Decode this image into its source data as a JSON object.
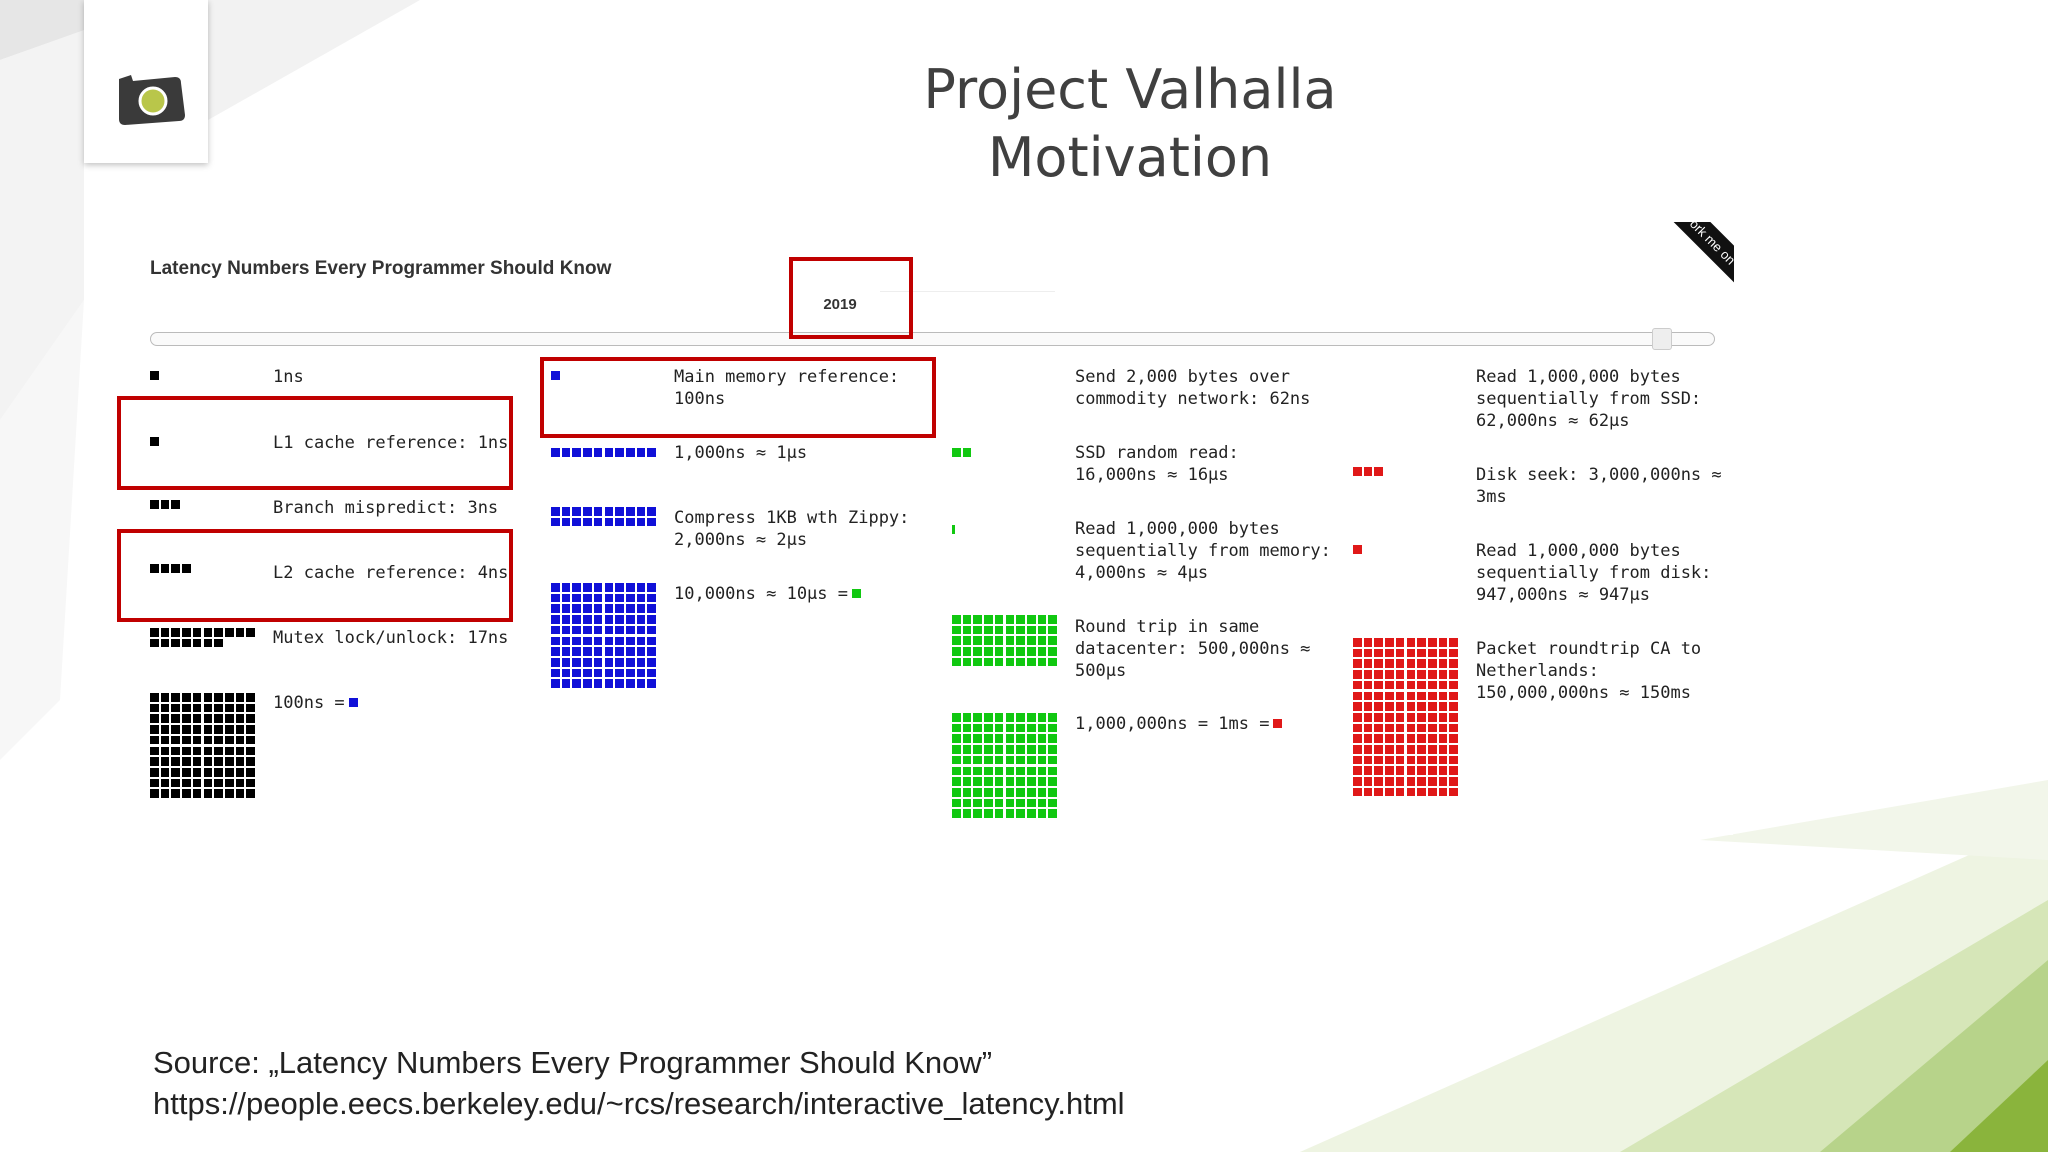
{
  "slide": {
    "title_line1": "Project Valhalla",
    "title_line2": "Motivation",
    "source_line1": "Source: „Latency Numbers Every Programmer Should Know”",
    "source_line2": "https://people.eecs.berkeley.edu/~rcs/research/interactive_latency.html",
    "logo_icon": "camera-icon",
    "accent_green": "#8ab43c",
    "highlight_red": "#c00000"
  },
  "panel": {
    "title": "Latency Numbers Every Programmer Should Know",
    "year": "2019",
    "year_slider_level": 0.965,
    "ribbon_text": "Fork me on GitHub"
  },
  "colors": {
    "black": "#000000",
    "blue": "#1010d8",
    "green": "#11c811",
    "red": "#e01818"
  },
  "items": [
    {
      "id": "unit-1ns",
      "text": "1ns",
      "squares": 1,
      "color": "black",
      "highlighted": false
    },
    {
      "id": "l1-cache",
      "text": "L1 cache reference: 1ns",
      "squares": 1,
      "color": "black",
      "highlighted": true
    },
    {
      "id": "branch-mispredict",
      "text": "Branch mispredict: 3ns",
      "squares": 3,
      "color": "black",
      "highlighted": false
    },
    {
      "id": "l2-cache",
      "text": "L2 cache reference: 4ns",
      "squares": 4,
      "color": "black",
      "highlighted": true
    },
    {
      "id": "mutex",
      "text": "Mutex lock/unlock: 17ns",
      "squares": 17,
      "color": "black",
      "highlighted": false
    },
    {
      "id": "unit-100ns",
      "text": "100ns =",
      "squares": 100,
      "color": "black",
      "equals_color": "blue",
      "highlighted": false
    },
    {
      "id": "main-memory",
      "line1": "Main memory reference:",
      "line2": "100ns",
      "squares": 1,
      "color": "blue",
      "highlighted": true
    },
    {
      "id": "unit-1us",
      "text": "1,000ns ≈ 1μs",
      "squares": 10,
      "color": "blue",
      "highlighted": false
    },
    {
      "id": "zippy",
      "line1": "Compress 1KB wth Zippy:",
      "line2": "2,000ns ≈ 2μs",
      "squares": 20,
      "color": "blue",
      "highlighted": false
    },
    {
      "id": "unit-10us",
      "text": "10,000ns ≈ 10μs =",
      "squares": 100,
      "color": "blue",
      "equals_color": "green",
      "highlighted": false
    },
    {
      "id": "network",
      "line1": "Send 2,000 bytes over",
      "line2": "commodity network: 62ns",
      "squares": 0,
      "color": "green",
      "highlighted": false
    },
    {
      "id": "ssd-random",
      "line1": "SSD random read:",
      "line2": "16,000ns ≈ 16μs",
      "squares": 2,
      "color": "green",
      "highlighted": false
    },
    {
      "id": "read-memory",
      "line1": "Read 1,000,000 bytes",
      "line2": "sequentially from memory:",
      "line3": "4,000ns ≈ 4μs",
      "squares": 0.4,
      "color": "green",
      "highlighted": false
    },
    {
      "id": "datacenter",
      "line1": "Round trip in same",
      "line2": "datacenter: 500,000ns ≈",
      "line3": "500μs",
      "squares": 50,
      "color": "green",
      "highlighted": false
    },
    {
      "id": "unit-1ms",
      "text": "1,000,000ns = 1ms =",
      "squares": 100,
      "color": "green",
      "equals_color": "red",
      "highlighted": false
    },
    {
      "id": "read-ssd",
      "line1": "Read 1,000,000 bytes",
      "line2": "sequentially from SSD:",
      "line3": "62,000ns ≈ 62μs",
      "squares": 0,
      "color": "red",
      "highlighted": false
    },
    {
      "id": "disk-seek",
      "line1": "Disk seek: 3,000,000ns ≈",
      "line2": "3ms",
      "squares": 3,
      "color": "red",
      "highlighted": false
    },
    {
      "id": "read-disk",
      "line1": "Read 1,000,000 bytes",
      "line2": "sequentially from disk:",
      "line3": "947,000ns ≈ 947μs",
      "squares": 1,
      "color": "red",
      "highlighted": false
    },
    {
      "id": "packet-ca-nl",
      "line1": "Packet roundtrip CA to",
      "line2": "Netherlands:",
      "line3": "150,000,000ns ≈ 150ms",
      "squares": 150,
      "color": "red",
      "highlighted": false
    }
  ]
}
